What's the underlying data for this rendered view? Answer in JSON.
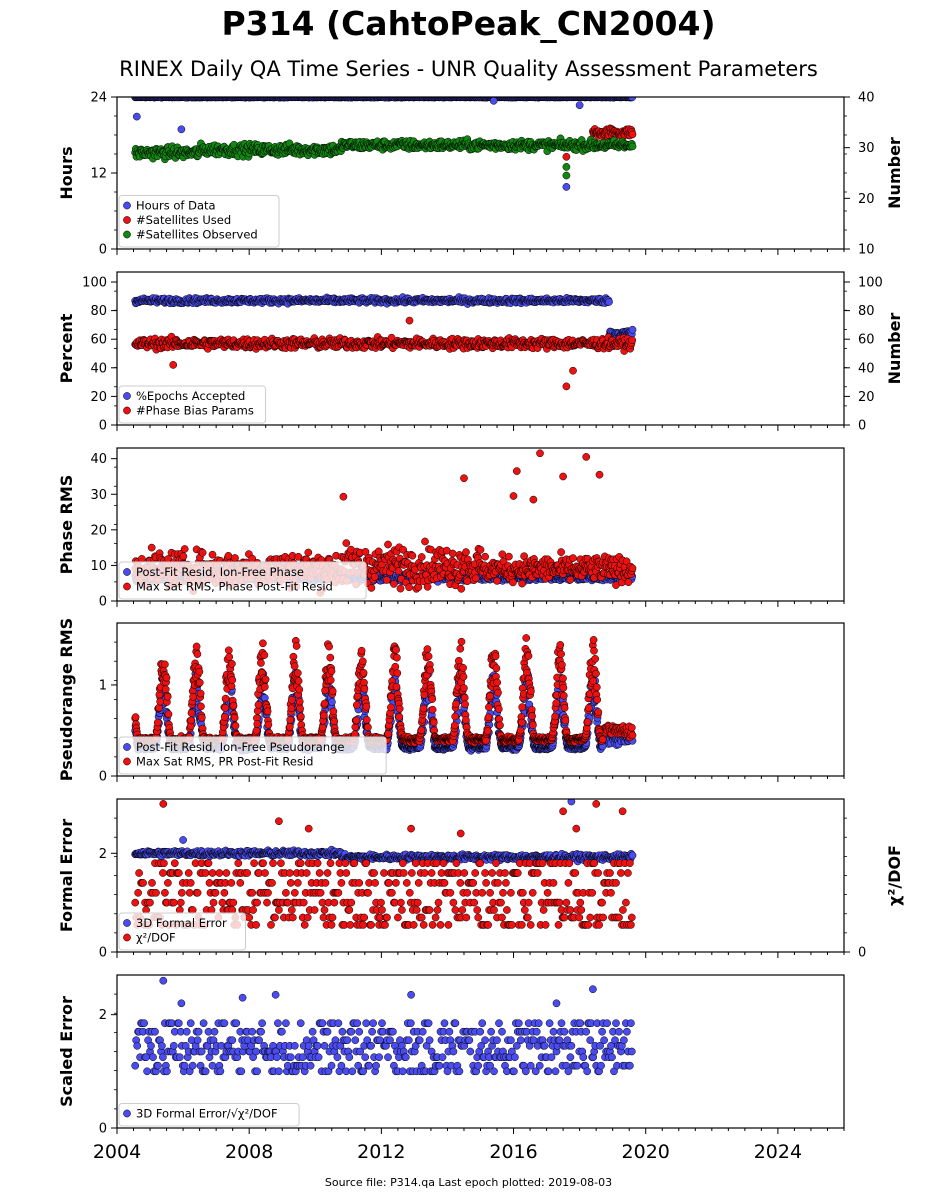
{
  "title": "P314 (CahtoPeak_CN2004)",
  "subtitle": "RINEX Daily QA Time Series - UNR Quality Assessment Parameters",
  "footer": "Source file: P314.qa Last epoch plotted: 2019-08-03",
  "colors": {
    "blue": "#4a4cf0",
    "red": "#ee1111",
    "green": "#128812",
    "navy": "#0a0a50",
    "edge": "#000000"
  },
  "chart_data": [
    {
      "type": "scatter",
      "ylabel": "Hours",
      "y2label": "Number",
      "xlim": [
        2004,
        2026
      ],
      "ylim": [
        0,
        24
      ],
      "y2lim": [
        10,
        40
      ],
      "yticks": [
        0,
        12,
        24
      ],
      "y2ticks": [
        10,
        20,
        30,
        40
      ],
      "legend_position": "lower-left",
      "series": [
        {
          "name": "Hours of Data",
          "color": "#4a4cf0",
          "axis": "left",
          "x_range": [
            2004.55,
            2019.6
          ],
          "base": 24,
          "spread": 0.15,
          "outliers": [
            [
              2004.6,
              20.9
            ],
            [
              2005.95,
              18.9
            ],
            [
              2017.6,
              9.8
            ],
            [
              2018.0,
              22.7
            ],
            [
              2015.4,
              23.4
            ]
          ]
        },
        {
          "name": "#Satellites Used",
          "color": "#ee1111",
          "axis": "right",
          "segments": [
            [
              2018.4,
              2019.6,
              33,
              1.2
            ]
          ],
          "outliers": [
            [
              2017.6,
              28.2
            ]
          ]
        },
        {
          "name": "#Satellites Observed",
          "color": "#128812",
          "axis": "right",
          "segments": [
            [
              2004.55,
              2006.5,
              29,
              1.6
            ],
            [
              2006.5,
              2010.8,
              29.6,
              1.6
            ],
            [
              2010.8,
              2019.6,
              30.5,
              1.3
            ]
          ],
          "outliers": [
            [
              2017.6,
              26.2
            ],
            [
              2017.6,
              24.5
            ]
          ]
        }
      ]
    },
    {
      "type": "scatter",
      "ylabel": "Percent",
      "y2label": "Number",
      "xlim": [
        2004,
        2026
      ],
      "ylim": [
        0,
        107
      ],
      "yticks": [
        0,
        20,
        40,
        60,
        80,
        100
      ],
      "legend_position": "lower-left",
      "series": [
        {
          "name": "%Epochs Accepted",
          "color": "#4a4cf0",
          "segments": [
            [
              2004.55,
              2018.9,
              87,
              2.5
            ],
            [
              2018.9,
              2019.6,
              64,
              4
            ]
          ]
        },
        {
          "name": "#Phase Bias Params",
          "color": "#ee1111",
          "segments": [
            [
              2004.55,
              2019.6,
              57,
              5
            ]
          ],
          "outliers": [
            [
              2017.6,
              27
            ],
            [
              2017.8,
              38
            ],
            [
              2012.85,
              73
            ],
            [
              2005.7,
              42
            ]
          ]
        }
      ]
    },
    {
      "type": "scatter",
      "ylabel": "Phase RMS",
      "xlim": [
        2004,
        2026
      ],
      "ylim": [
        0,
        43
      ],
      "yticks": [
        0,
        10,
        20,
        30,
        40
      ],
      "legend_position": "lower-left",
      "series": [
        {
          "name": "Post-Fit Resid, Ion-Free Phase",
          "color": "#4a4cf0",
          "segments": [
            [
              2004.55,
              2019.6,
              6.5,
              1.2
            ]
          ]
        },
        {
          "name": "Max Sat RMS, Phase Post-Fit Resid",
          "color": "#ee1111",
          "segments": [
            [
              2004.55,
              2010.8,
              9,
              7
            ],
            [
              2010.8,
              2015.0,
              10,
              8
            ],
            [
              2015.0,
              2019.6,
              9,
              5
            ]
          ],
          "outliers": [
            [
              2010.85,
              29.3
            ],
            [
              2014.5,
              34.5
            ],
            [
              2016.1,
              36.5
            ],
            [
              2016.8,
              41.5
            ],
            [
              2017.5,
              35
            ],
            [
              2018.2,
              40.5
            ],
            [
              2018.6,
              35.5
            ],
            [
              2016.0,
              29.5
            ],
            [
              2016.6,
              28.5
            ]
          ]
        }
      ]
    },
    {
      "type": "scatter",
      "ylabel": "Pseudorange RMS",
      "xlim": [
        2004,
        2026
      ],
      "ylim": [
        0,
        1.68
      ],
      "yticks": [
        0,
        1
      ],
      "legend_position": "lower-left",
      "series": [
        {
          "name": "Post-Fit Resid, Ion-Free Pseudorange",
          "color": "#4a4cf0",
          "seasonal": {
            "x_range": [
              2004.55,
              2018.7
            ],
            "low": 0.35,
            "high": 1.3,
            "ratio": 0.9
          },
          "segments": [
            [
              2018.7,
              2019.6,
              0.4,
              0.08
            ]
          ]
        },
        {
          "name": "Max Sat RMS, PR Post-Fit Resid",
          "color": "#ee1111",
          "seasonal": {
            "x_range": [
              2004.55,
              2018.7
            ],
            "low": 0.4,
            "high": 1.5,
            "ratio": 1.0
          },
          "segments": [
            [
              2018.7,
              2019.6,
              0.5,
              0.1
            ]
          ]
        }
      ]
    },
    {
      "type": "scatter",
      "ylabel": "Formal Error",
      "y2label": "χ²/DOF",
      "xlim": [
        2004,
        2026
      ],
      "ylim": [
        0,
        3.1
      ],
      "yticks": [
        0,
        2
      ],
      "y2ticks": [
        0
      ],
      "legend_position": "lower-left",
      "series": [
        {
          "name": "3D Formal Error",
          "color": "#4a4cf0",
          "segments": [
            [
              2004.55,
              2010.8,
              2.0,
              0.08
            ],
            [
              2010.8,
              2019.6,
              1.92,
              0.08
            ]
          ],
          "outliers": [
            [
              2006.0,
              2.27
            ],
            [
              2017.75,
              3.05
            ]
          ]
        },
        {
          "name": "χ²/DOF",
          "color": "#ee1111",
          "levels": [
            0.55,
            0.7,
            0.85,
            1.0,
            1.2,
            1.4,
            1.6,
            1.8
          ],
          "x_range": [
            2004.55,
            2019.6
          ],
          "outliers": [
            [
              2005.4,
              3.0
            ],
            [
              2008.9,
              2.65
            ],
            [
              2009.8,
              2.5
            ],
            [
              2017.5,
              2.85
            ],
            [
              2018.5,
              3.0
            ],
            [
              2019.3,
              2.85
            ],
            [
              2012.9,
              2.5
            ],
            [
              2017.9,
              2.5
            ],
            [
              2014.4,
              2.4
            ]
          ]
        }
      ]
    },
    {
      "type": "scatter",
      "ylabel": "Scaled Error",
      "xlim": [
        2004,
        2026
      ],
      "ylim": [
        0,
        2.7
      ],
      "yticks": [
        0,
        2
      ],
      "xticks": [
        2004,
        2008,
        2012,
        2016,
        2020,
        2024
      ],
      "legend_position": "lower-left",
      "series": [
        {
          "name": "3D Formal Error/√χ²/DOF",
          "color": "#4a4cf0",
          "levels": [
            1.0,
            1.1,
            1.25,
            1.35,
            1.45,
            1.55,
            1.7,
            1.85
          ],
          "x_range": [
            2004.55,
            2019.6
          ],
          "outliers": [
            [
              2005.4,
              2.6
            ],
            [
              2008.8,
              2.35
            ],
            [
              2018.4,
              2.45
            ],
            [
              2012.9,
              2.35
            ],
            [
              2005.95,
              2.2
            ],
            [
              2007.8,
              2.3
            ],
            [
              2017.3,
              2.2
            ]
          ]
        }
      ]
    }
  ]
}
